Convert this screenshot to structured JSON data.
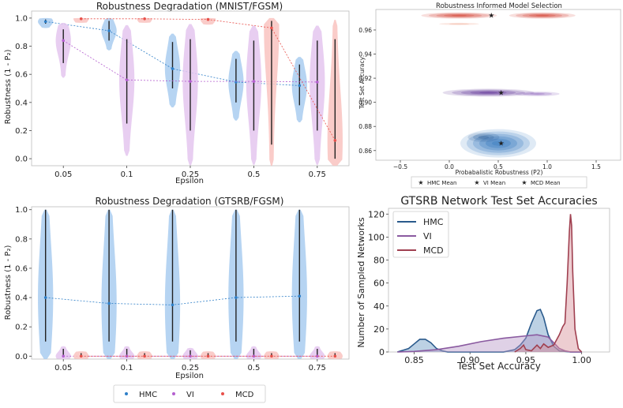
{
  "colors": {
    "hmc": "#2e7fc8",
    "vi": "#b45fcf",
    "mcd": "#e8504a",
    "hmc_fill": "#a9cdf0",
    "vi_fill": "#e4c6ee",
    "mcd_fill": "#f9c3c0"
  },
  "chart_data": [
    {
      "id": "mnist",
      "type": "violin",
      "title": "Robustness Degradation (MNIST/FGSM)",
      "xlabel": "Epsilon",
      "ylabel": "Robustness (1 - P₂)",
      "categories": [
        "0.05",
        "0.1",
        "0.25",
        "0.5",
        "0.75"
      ],
      "ylim": [
        -0.05,
        1.05
      ],
      "yticks": [
        "0.0",
        "0.2",
        "0.4",
        "0.6",
        "0.8",
        "1.0"
      ],
      "series": [
        {
          "name": "HMC",
          "means": [
            0.975,
            0.91,
            0.64,
            0.545,
            0.52
          ],
          "q": [
            [
              0.96,
              0.99
            ],
            [
              0.84,
              0.98
            ],
            [
              0.5,
              0.83
            ],
            [
              0.4,
              0.71
            ],
            [
              0.38,
              0.67
            ]
          ]
        },
        {
          "name": "VI",
          "means": [
            0.84,
            0.56,
            0.55,
            0.55,
            0.545
          ],
          "q": [
            [
              0.68,
              0.92
            ],
            [
              0.25,
              0.85
            ],
            [
              0.2,
              0.85
            ],
            [
              0.2,
              0.84
            ],
            [
              0.2,
              0.84
            ]
          ]
        },
        {
          "name": "MCD",
          "means": [
            0.995,
            0.995,
            0.99,
            0.93,
            0.13
          ],
          "q": [
            [
              0.99,
              1.0
            ],
            [
              0.99,
              1.0
            ],
            [
              0.98,
              1.0
            ],
            [
              0.1,
              0.98
            ],
            [
              0.0,
              0.85
            ]
          ]
        }
      ]
    },
    {
      "id": "kde",
      "type": "kde2d",
      "title": "Robustness Informed Model Selection",
      "xlabel": "Probabalistic Robustness (P2)",
      "ylabel": "Test Set Accuracy",
      "xlim": [
        -0.75,
        1.75
      ],
      "ylim": [
        0.852,
        0.977
      ],
      "xticks": [
        "−0.5",
        "0.0",
        "0.5",
        "1.0",
        "1.5"
      ],
      "yticks": [
        "0.86",
        "0.88",
        "0.90",
        "0.92",
        "0.94",
        "0.96"
      ],
      "means": [
        {
          "name": "HMC Mean",
          "x": 0.53,
          "y": 0.866
        },
        {
          "name": "VI Mean",
          "x": 0.53,
          "y": 0.908
        },
        {
          "name": "MCD Mean",
          "x": 0.43,
          "y": 0.972
        }
      ]
    },
    {
      "id": "gtsrb",
      "type": "violin",
      "title": "Robustness Degradation (GTSRB/FGSM)",
      "xlabel": "Epsilon",
      "ylabel": "Robustness (1 - P₂)",
      "categories": [
        "0.05",
        "0.1",
        "0.25",
        "0.5",
        "0.75"
      ],
      "ylim": [
        -0.02,
        1.02
      ],
      "yticks": [
        "0.0",
        "0.2",
        "0.4",
        "0.6",
        "0.8",
        "1.0"
      ],
      "series": [
        {
          "name": "HMC",
          "means": [
            0.4,
            0.36,
            0.35,
            0.4,
            0.41
          ],
          "q": [
            [
              0.1,
              1.0
            ],
            [
              0.1,
              1.0
            ],
            [
              0.1,
              1.0
            ],
            [
              0.1,
              1.0
            ],
            [
              0.1,
              1.0
            ]
          ]
        },
        {
          "name": "VI",
          "means": [
            0.0,
            0.0,
            0.0,
            0.0,
            0.0
          ],
          "q": [
            [
              0.0,
              0.05
            ],
            [
              0.0,
              0.05
            ],
            [
              0.0,
              0.04
            ],
            [
              0.0,
              0.05
            ],
            [
              0.0,
              0.05
            ]
          ]
        },
        {
          "name": "MCD",
          "means": [
            0.0,
            0.0,
            0.0,
            0.0,
            0.0
          ],
          "q": [
            [
              0.0,
              0.02
            ],
            [
              0.0,
              0.02
            ],
            [
              0.0,
              0.02
            ],
            [
              0.0,
              0.02
            ],
            [
              0.0,
              0.02
            ]
          ]
        }
      ]
    },
    {
      "id": "acc",
      "type": "area",
      "title": "GTSRB Network Test Set Accuracies",
      "xlabel": "Test Set Accuracy",
      "ylabel": "Number of Sampled Networks",
      "xlim": [
        0.827,
        1.025
      ],
      "ylim": [
        0,
        125
      ],
      "xticks": [
        "0.85",
        "0.90",
        "0.95",
        "1.00"
      ],
      "yticks": [
        "0",
        "20",
        "40",
        "60",
        "80",
        "100",
        "120"
      ],
      "series": [
        {
          "name": "HMC",
          "x": [
            0.835,
            0.845,
            0.85,
            0.855,
            0.86,
            0.865,
            0.87,
            0.875,
            0.88,
            0.89,
            0.9,
            0.91,
            0.92,
            0.93,
            0.94,
            0.945,
            0.95,
            0.955,
            0.96,
            0.963,
            0.966,
            0.97,
            0.975,
            0.98,
            0.99,
            1.0
          ],
          "y": [
            0,
            3,
            7,
            11,
            11,
            8,
            3,
            1,
            0,
            0,
            0,
            0,
            0,
            0,
            2,
            6,
            12,
            25,
            36,
            37,
            30,
            15,
            5,
            1,
            0,
            0
          ]
        },
        {
          "name": "VI",
          "x": [
            0.835,
            0.85,
            0.87,
            0.89,
            0.91,
            0.93,
            0.95,
            0.96,
            0.97,
            0.975,
            0.98,
            0.985,
            0.99,
            1.0
          ],
          "y": [
            0,
            0.5,
            2,
            5,
            9,
            12,
            14,
            15,
            13,
            8,
            3,
            1,
            0,
            0
          ]
        },
        {
          "name": "MCD",
          "x": [
            0.94,
            0.945,
            0.948,
            0.95,
            0.955,
            0.96,
            0.963,
            0.966,
            0.97,
            0.975,
            0.98,
            0.983,
            0.985,
            0.987,
            0.989,
            0.99,
            0.991,
            0.992,
            0.994,
            0.997,
            1.0
          ],
          "y": [
            0,
            3,
            6,
            2,
            1,
            6,
            3,
            7,
            4,
            6,
            15,
            22,
            25,
            60,
            105,
            120,
            110,
            70,
            20,
            3,
            0
          ]
        }
      ]
    }
  ],
  "legend_bottom": [
    "HMC",
    "VI",
    "MCD"
  ]
}
